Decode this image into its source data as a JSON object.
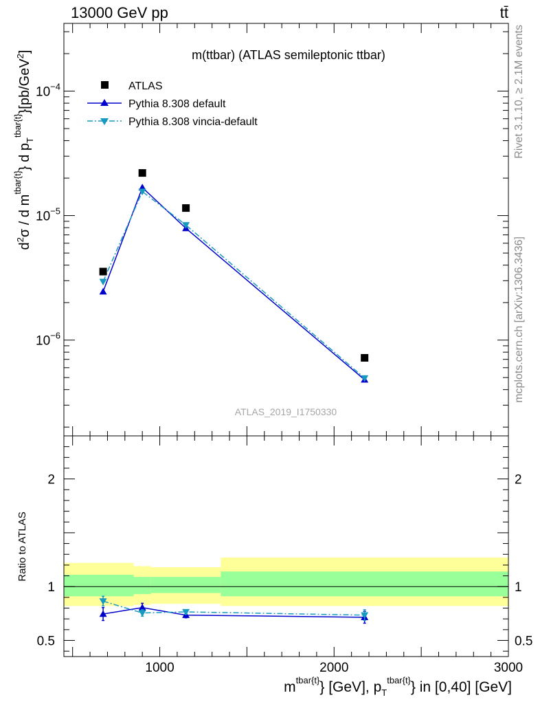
{
  "header": {
    "left": "13000 GeV pp",
    "right": "tt̄"
  },
  "side": {
    "rivet": "Rivet 3.1.10, ≥ 2.1M events",
    "mcplots": "mcplots.cern.ch [arXiv:1306.3436]"
  },
  "chart_data": [
    {
      "type": "scatter",
      "title": "m(ttbar) (ATLAS semileptonic ttbar)",
      "watermark": "ATLAS_2019_I1750330",
      "ylabel": "d²σ / d m^tbar{t}} d p_T^tbar{t}}[pb/GeV²]",
      "yscale": "log",
      "ylim": [
        1.7e-07,
        0.00035
      ],
      "yticks": [
        {
          "value": 1e-06,
          "base": "10",
          "exp": "−6"
        },
        {
          "value": 1e-05,
          "base": "10",
          "exp": "−5"
        },
        {
          "value": 0.0001,
          "base": "10",
          "exp": "−4"
        }
      ],
      "xlim": [
        450,
        3000
      ],
      "legend": {
        "position": "top-left"
      },
      "series": [
        {
          "name": "ATLAS",
          "color": "#000000",
          "marker": "square",
          "x": [
            675,
            900,
            1150,
            2175
          ],
          "y": [
            3.55e-06,
            2.2e-05,
            1.15e-05,
            7.2e-07
          ],
          "xerr": [
            225,
            50,
            200,
            825
          ]
        },
        {
          "name": "Pythia 8.308 default",
          "color": "#0000cc",
          "marker": "triangle-up",
          "line": "solid",
          "x": [
            675,
            900,
            1150,
            2175
          ],
          "y": [
            2.45e-06,
            1.68e-05,
            7.9e-06,
            4.8e-07
          ]
        },
        {
          "name": "Pythia 8.308 vincia-default",
          "color": "#1799c0",
          "marker": "triangle-down",
          "line": "dashdot",
          "x": [
            675,
            900,
            1150,
            2175
          ],
          "y": [
            2.95e-06,
            1.56e-05,
            8.4e-06,
            4.95e-07
          ]
        }
      ]
    },
    {
      "type": "scatter",
      "ylabel": "Ratio to ATLAS",
      "xlabel": "m^tbar{t}} [GeV], p_T^tbar{t}} in [0,40] [GeV]",
      "ylim": [
        0.35,
        2.4
      ],
      "yticks": [
        0.5,
        1,
        2
      ],
      "xlim": [
        450,
        3000
      ],
      "xticks": [
        1000,
        2000,
        3000
      ],
      "bands": [
        {
          "xmin": 450,
          "xmax": 850,
          "yellow": [
            0.82,
            1.22
          ],
          "green": [
            0.91,
            1.11
          ]
        },
        {
          "xmin": 850,
          "xmax": 950,
          "yellow": [
            0.83,
            1.19
          ],
          "green": [
            0.93,
            1.09
          ]
        },
        {
          "xmin": 950,
          "xmax": 1350,
          "yellow": [
            0.84,
            1.18
          ],
          "green": [
            0.94,
            1.09
          ]
        },
        {
          "xmin": 1350,
          "xmax": 3000,
          "yellow": [
            0.82,
            1.27
          ],
          "green": [
            0.91,
            1.14
          ]
        }
      ],
      "series": [
        {
          "name": "Pythia 8.308 default",
          "color": "#0000cc",
          "marker": "triangle-up",
          "line": "solid",
          "x": [
            675,
            900,
            1150,
            2175
          ],
          "y": [
            0.745,
            0.805,
            0.735,
            0.715
          ],
          "yerr": [
            0.06,
            0.04,
            0.025,
            0.055
          ]
        },
        {
          "name": "Pythia 8.308 vincia-default",
          "color": "#1799c0",
          "marker": "triangle-down",
          "line": "dashdot",
          "x": [
            675,
            900,
            1150,
            2175
          ],
          "y": [
            0.865,
            0.755,
            0.765,
            0.735
          ],
          "yerr": [
            0.045,
            0.03,
            0.02,
            0.05
          ]
        }
      ]
    }
  ]
}
